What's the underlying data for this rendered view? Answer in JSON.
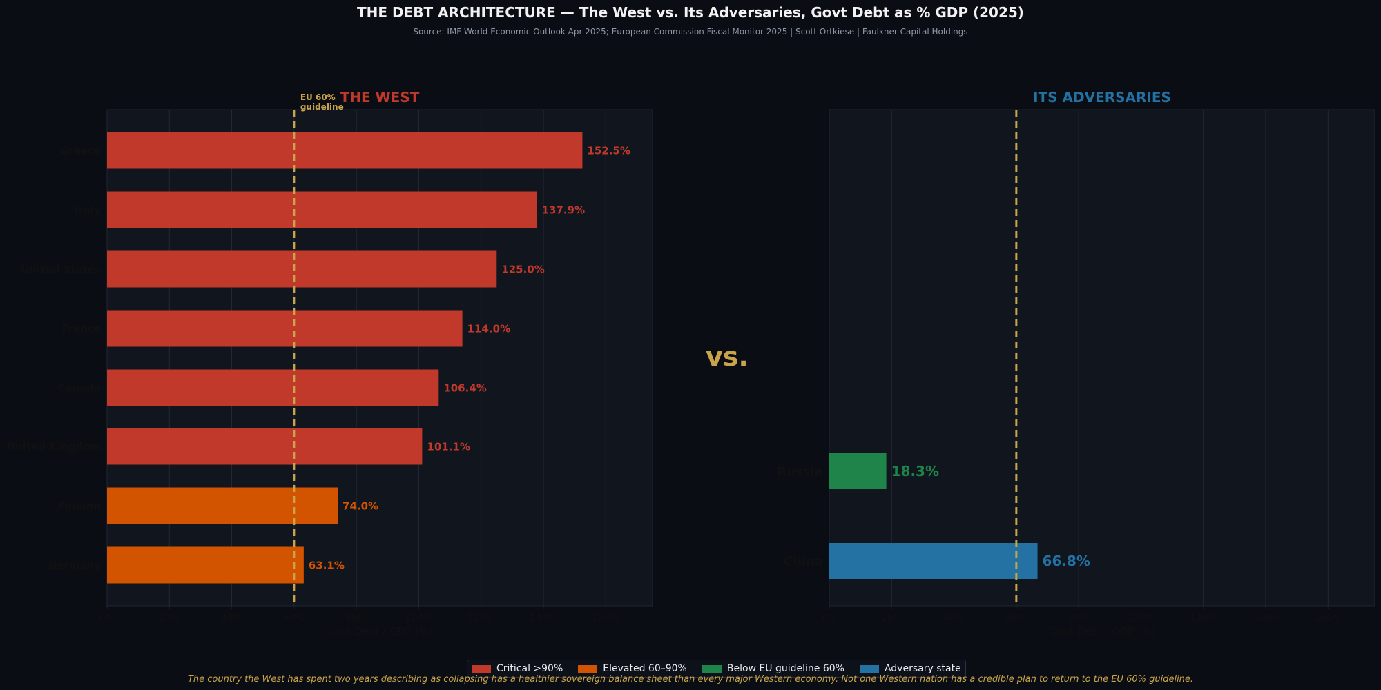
{
  "title": "THE DEBT ARCHITECTURE — The West vs. Its Adversaries, Govt Debt as % GDP (2025)",
  "subtitle": "Source: IMF World Economic Outlook Apr 2025; European Commission Fiscal Monitor 2025  |  Scott Ortkiese  |  Faulkner Capital Holdings",
  "vs_label": "vs.",
  "footnote": "The country the West has spent two years describing as collapsing has a healthier sovereign balance sheet than every major Western economy. Not one Western nation has a credible plan to return to the EU 60% guideline.",
  "colors": {
    "critical": "#c0392b",
    "elevated": "#d35400",
    "below": "#1e8449",
    "adversary": "#2471a3",
    "guideline": "#c9a44a",
    "panel_bg": "#10151e",
    "grid": "#232a36",
    "axis_text": "#111111"
  },
  "legend": [
    {
      "label": "Critical >90%",
      "color": "#c0392b"
    },
    {
      "label": "Elevated 60–90%",
      "color": "#d35400"
    },
    {
      "label": "Below EU guideline 60%",
      "color": "#1e8449"
    },
    {
      "label": "Adversary state",
      "color": "#2471a3"
    }
  ],
  "chart_data": [
    {
      "type": "bar",
      "orientation": "horizontal",
      "title": "THE WEST",
      "title_color": "#c0392b",
      "xlabel": "Govt Debt / GDP (%)",
      "xlim": [
        0,
        175
      ],
      "xticks": [
        "0%",
        "20%",
        "40%",
        "60%",
        "80%",
        "100%",
        "120%",
        "140%",
        "160%"
      ],
      "xtick_values": [
        0,
        20,
        40,
        60,
        80,
        100,
        120,
        140,
        160
      ],
      "reference_line": {
        "value": 60,
        "label_line1": "EU 60%",
        "label_line2": "guideline"
      },
      "categories": [
        "Greece",
        "Italy",
        "United States",
        "France",
        "Canada",
        "United Kingdom",
        "Finland",
        "Germany"
      ],
      "values": [
        152.5,
        137.9,
        125.0,
        114.0,
        106.4,
        101.1,
        74.0,
        63.1
      ],
      "value_labels": [
        "152.5%",
        "137.9%",
        "125.0%",
        "114.0%",
        "106.4%",
        "101.1%",
        "74.0%",
        "63.1%"
      ],
      "bar_colors": [
        "#c0392b",
        "#c0392b",
        "#c0392b",
        "#c0392b",
        "#c0392b",
        "#c0392b",
        "#d35400",
        "#d35400"
      ],
      "grid": true
    },
    {
      "type": "bar",
      "orientation": "horizontal",
      "title": "ITS ADVERSARIES",
      "title_color": "#2471a3",
      "xlabel": "Govt Debt / GDP (%)",
      "xlim": [
        0,
        175
      ],
      "xticks": [
        "0%",
        "20%",
        "40%",
        "60%",
        "80%",
        "100%",
        "120%",
        "140%",
        "160%"
      ],
      "xtick_values": [
        0,
        20,
        40,
        60,
        80,
        100,
        120,
        140,
        160
      ],
      "reference_line": {
        "value": 60
      },
      "categories": [
        "Russia",
        "China"
      ],
      "values": [
        18.3,
        66.8
      ],
      "value_labels": [
        "18.3%",
        "66.8%"
      ],
      "bar_colors": [
        "#1e8449",
        "#2471a3"
      ],
      "grid": true
    }
  ]
}
